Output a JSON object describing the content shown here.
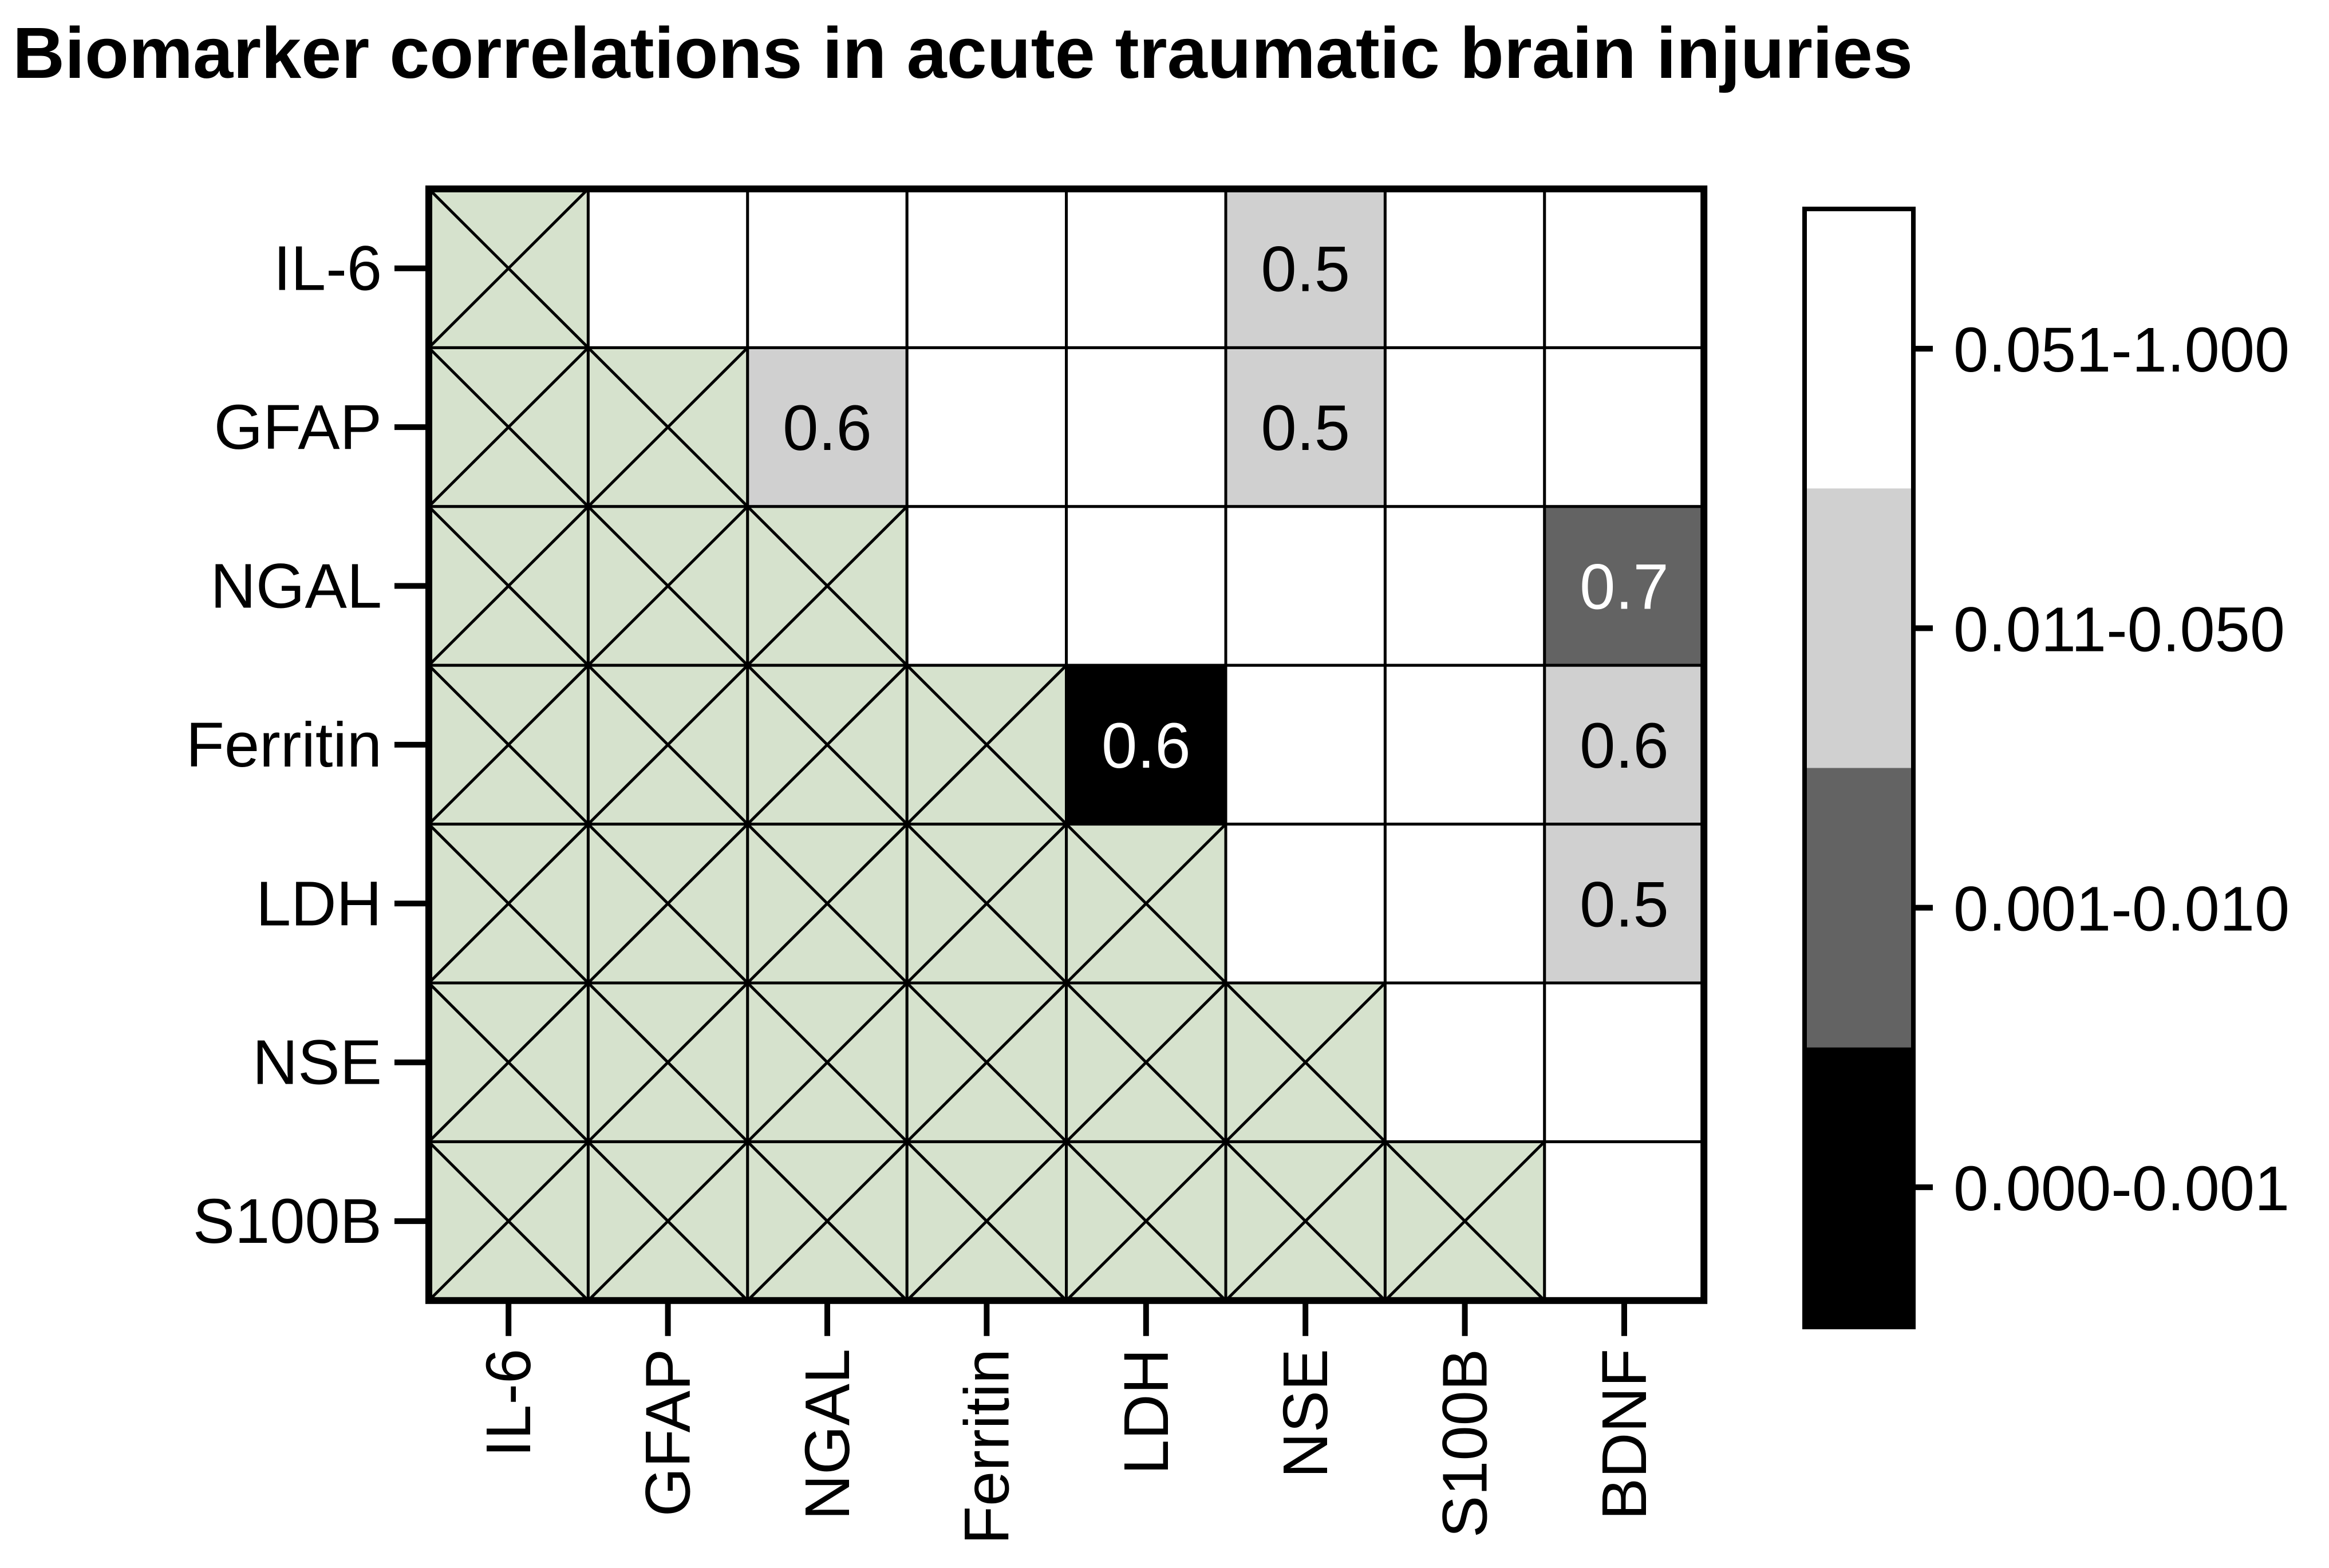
{
  "chart_data": {
    "type": "heatmap",
    "title": "Biomarker correlations in acute traumatic brain injuries",
    "rows": [
      "IL-6",
      "GFAP",
      "NGAL",
      "Ferritin",
      "LDH",
      "NSE",
      "S100B"
    ],
    "columns": [
      "IL-6",
      "GFAP",
      "NGAL",
      "Ferritin",
      "LDH",
      "NSE",
      "S100B",
      "BDNF"
    ],
    "cells": [
      {
        "row": "IL-6",
        "col": "NSE",
        "value": "0.5",
        "p_range": "0.011-0.050"
      },
      {
        "row": "GFAP",
        "col": "NGAL",
        "value": "0.6",
        "p_range": "0.011-0.050"
      },
      {
        "row": "GFAP",
        "col": "NSE",
        "value": "0.5",
        "p_range": "0.011-0.050"
      },
      {
        "row": "NGAL",
        "col": "BDNF",
        "value": "0.7",
        "p_range": "0.001-0.010"
      },
      {
        "row": "Ferritin",
        "col": "LDH",
        "value": "0.6",
        "p_range": "0.000-0.001"
      },
      {
        "row": "Ferritin",
        "col": "BDNF",
        "value": "0.6",
        "p_range": "0.011-0.050"
      },
      {
        "row": "LDH",
        "col": "BDNF",
        "value": "0.5",
        "p_range": "0.011-0.050"
      }
    ],
    "excluded_cells": "lower triangle including diagonal (hatched)",
    "legend": {
      "position": "right",
      "items": [
        {
          "label": "0.051-1.000",
          "color": "#ffffff"
        },
        {
          "label": "0.011-0.050",
          "color": "#d0d0d0"
        },
        {
          "label": "0.001-0.010",
          "color": "#636363"
        },
        {
          "label": "0.000-0.001",
          "color": "#000000"
        }
      ]
    },
    "hatch_color": "#d6e2cd"
  }
}
